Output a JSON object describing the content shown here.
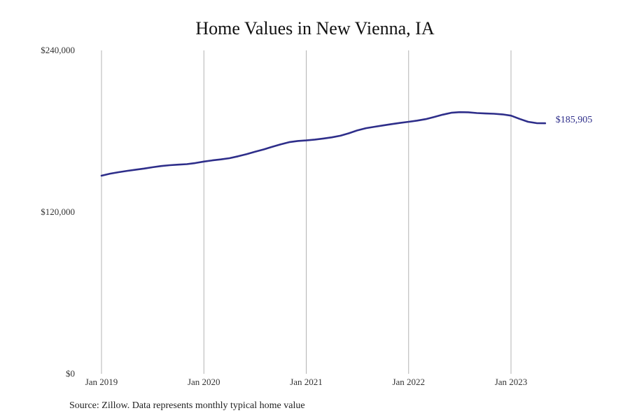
{
  "chart_data": {
    "type": "line",
    "title": "Home Values in New Vienna, IA",
    "xlabel": "",
    "ylabel": "",
    "ylim": [
      0,
      240000
    ],
    "y_ticks": [
      {
        "value": 0,
        "label": "$0"
      },
      {
        "value": 120000,
        "label": "$120,000"
      },
      {
        "value": 240000,
        "label": "$240,000"
      }
    ],
    "x_ticks": [
      {
        "value": "2019-01",
        "label": "Jan 2019"
      },
      {
        "value": "2020-01",
        "label": "Jan 2020"
      },
      {
        "value": "2021-01",
        "label": "Jan 2021"
      },
      {
        "value": "2022-01",
        "label": "Jan 2022"
      },
      {
        "value": "2023-01",
        "label": "Jan 2023"
      }
    ],
    "grid": "vertical",
    "color": "#2e2e8a",
    "end_label": "$185,905",
    "series": [
      {
        "x": [
          "2019-01",
          "2019-02",
          "2019-03",
          "2019-04",
          "2019-05",
          "2019-06",
          "2019-07",
          "2019-08",
          "2019-09",
          "2019-10",
          "2019-11",
          "2019-12",
          "2020-01",
          "2020-02",
          "2020-03",
          "2020-04",
          "2020-05",
          "2020-06",
          "2020-07",
          "2020-08",
          "2020-09",
          "2020-10",
          "2020-11",
          "2020-12",
          "2021-01",
          "2021-02",
          "2021-03",
          "2021-04",
          "2021-05",
          "2021-06",
          "2021-07",
          "2021-08",
          "2021-09",
          "2021-10",
          "2021-11",
          "2021-12",
          "2022-01",
          "2022-02",
          "2022-03",
          "2022-04",
          "2022-05",
          "2022-06",
          "2022-07",
          "2022-08",
          "2022-09",
          "2022-10",
          "2022-11",
          "2022-12",
          "2023-01",
          "2023-02",
          "2023-03",
          "2023-04",
          "2023-05"
        ],
        "values": [
          147000,
          148500,
          149600,
          150600,
          151500,
          152300,
          153300,
          154200,
          154800,
          155200,
          155600,
          156400,
          157500,
          158400,
          159100,
          160000,
          161400,
          163000,
          164800,
          166500,
          168400,
          170300,
          171900,
          172800,
          173200,
          173800,
          174600,
          175500,
          176700,
          178500,
          180700,
          182300,
          183300,
          184300,
          185300,
          186200,
          187000,
          187900,
          189000,
          190600,
          192300,
          193700,
          194200,
          194100,
          193500,
          193200,
          193000,
          192500,
          191600,
          189200,
          187000,
          186000,
          185905
        ]
      }
    ]
  },
  "source_note": "Source: Zillow. Data represents monthly typical home value"
}
